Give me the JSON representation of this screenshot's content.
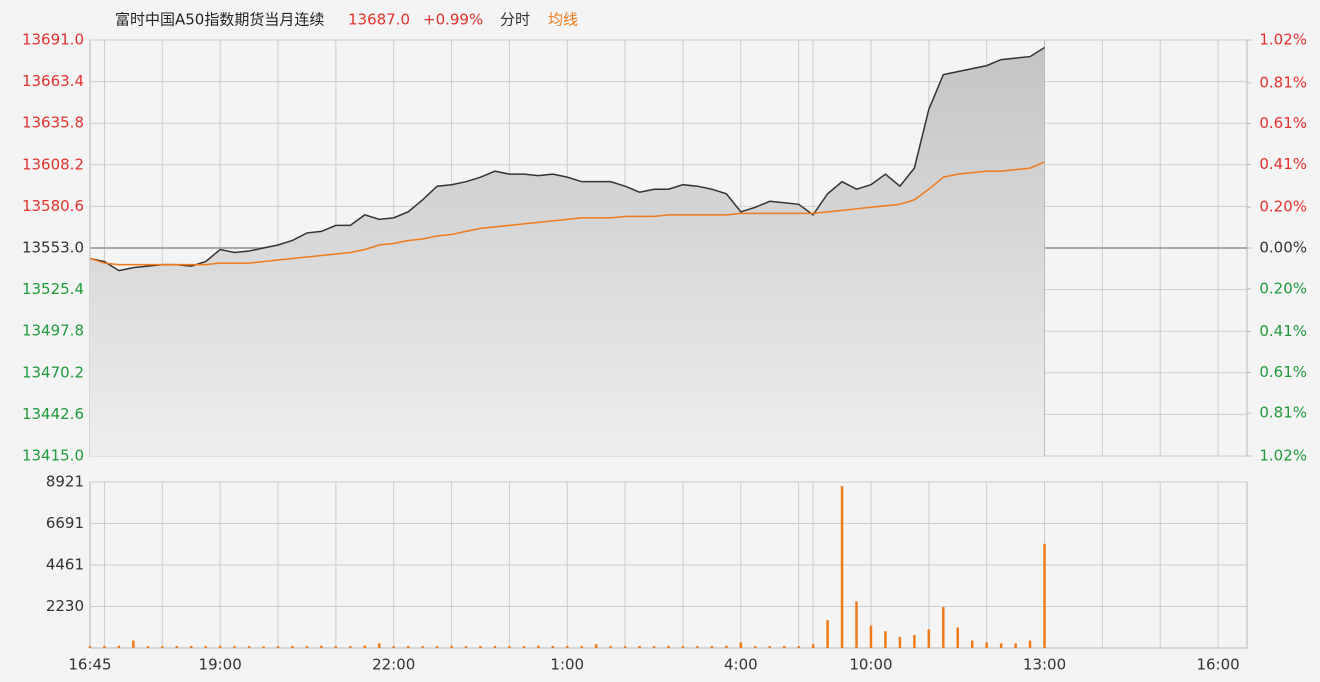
{
  "chart_data": [
    {
      "type": "line",
      "title": "富时中国A50指数期货当月连续",
      "quote": "13687.0",
      "change": "+0.99%",
      "categories": [
        "16:45",
        null,
        null,
        null,
        null,
        null,
        null,
        null,
        null,
        "19:00",
        null,
        null,
        null,
        null,
        null,
        null,
        null,
        null,
        null,
        null,
        null,
        "22:00",
        null,
        null,
        null,
        null,
        null,
        null,
        null,
        null,
        null,
        null,
        null,
        "1:00",
        null,
        null,
        null,
        null,
        null,
        null,
        null,
        null,
        null,
        null,
        null,
        "4:00",
        null,
        null,
        null,
        null,
        null,
        null,
        null,
        null,
        "10:00",
        null,
        null,
        null,
        null,
        null,
        null,
        null,
        null,
        null,
        null,
        null,
        "13:00",
        null,
        null,
        null,
        null,
        null,
        null,
        null,
        null,
        null,
        null,
        null,
        "16:00",
        null,
        null
      ],
      "series": [
        {
          "name": "分时",
          "color": "#333333",
          "values": [
            13546,
            13544,
            13538,
            13540,
            13541,
            13542,
            13542,
            13541,
            13544,
            13552,
            13550,
            13551,
            13553,
            13555,
            13558,
            13563,
            13564,
            13568,
            13568,
            13575,
            13572,
            13573,
            13577,
            13585,
            13594,
            13595,
            13597,
            13600,
            13604,
            13602,
            13602,
            13601,
            13602,
            13600,
            13597,
            13597,
            13597,
            13594,
            13590,
            13592,
            13592,
            13595,
            13594,
            13592,
            13589,
            13577,
            13580,
            13584,
            13583,
            13582,
            13575,
            13589,
            13597,
            13592,
            13595,
            13602,
            13594,
            13606,
            13645,
            13668,
            13670,
            13672,
            13674,
            13678,
            13679,
            13680,
            13686,
            null,
            null,
            null,
            null,
            null,
            null,
            null,
            null,
            null,
            null,
            null,
            null,
            null,
            null
          ]
        },
        {
          "name": "均线",
          "color": "#f07a1a",
          "values": [
            13546,
            13543,
            13542,
            13542,
            13542,
            13542,
            13542,
            13542,
            13542,
            13543,
            13543,
            13543,
            13544,
            13545,
            13546,
            13547,
            13548,
            13549,
            13550,
            13552,
            13555,
            13556,
            13558,
            13559,
            13561,
            13562,
            13564,
            13566,
            13567,
            13568,
            13569,
            13570,
            13571,
            13572,
            13573,
            13573,
            13573,
            13574,
            13574,
            13574,
            13575,
            13575,
            13575,
            13575,
            13575,
            13576,
            13576,
            13576,
            13576,
            13576,
            13576,
            13577,
            13578,
            13579,
            13580,
            13581,
            13582,
            13585,
            13592,
            13600,
            13602,
            13603,
            13604,
            13604,
            13605,
            13606,
            13610,
            null,
            null,
            null,
            null,
            null,
            null,
            null,
            null,
            null,
            null,
            null,
            null,
            null,
            null
          ]
        }
      ],
      "ylim": [
        13415,
        13691
      ],
      "yticks": [
        {
          "value": 13691,
          "label": "13691.0"
        },
        {
          "value": 13663.4,
          "label": "13663.4"
        },
        {
          "value": 13635.8,
          "label": "13635.8"
        },
        {
          "value": 13608.2,
          "label": "13608.2"
        },
        {
          "value": 13580.6,
          "label": "13580.6"
        },
        {
          "value": 13553,
          "label": "13553.0"
        },
        {
          "value": 13525.4,
          "label": "13525.4"
        },
        {
          "value": 13497.8,
          "label": "13497.8"
        },
        {
          "value": 13470.2,
          "label": "13470.2"
        },
        {
          "value": 13442.6,
          "label": "13442.6"
        },
        {
          "value": 13415,
          "label": "13415.0"
        }
      ],
      "y2lim": [
        -1.02,
        1.02
      ],
      "y2ticks": [
        {
          "value": 1.02,
          "label": "1.02%"
        },
        {
          "value": 0.81,
          "label": "0.81%"
        },
        {
          "value": 0.61,
          "label": "0.61%"
        },
        {
          "value": 0.41,
          "label": "0.41%"
        },
        {
          "value": 0.2,
          "label": "0.20%"
        },
        {
          "value": 0,
          "label": "0.00%"
        },
        {
          "value": -0.2,
          "label": "0.20%"
        },
        {
          "value": -0.41,
          "label": "0.41%"
        },
        {
          "value": -0.61,
          "label": "0.61%"
        },
        {
          "value": -0.81,
          "label": "0.81%"
        },
        {
          "value": -1.02,
          "label": "1.02%"
        }
      ],
      "colors": {
        "up": "#e2322f",
        "down": "#1f9a3c"
      },
      "grid": true
    },
    {
      "type": "bar",
      "values": [
        100,
        100,
        120,
        400,
        100,
        90,
        100,
        110,
        100,
        120,
        100,
        100,
        90,
        100,
        110,
        100,
        120,
        100,
        100,
        130,
        250,
        100,
        110,
        100,
        100,
        120,
        100,
        100,
        110,
        100,
        100,
        120,
        100,
        110,
        100,
        200,
        100,
        100,
        110,
        100,
        120,
        100,
        100,
        110,
        120,
        300,
        100,
        100,
        110,
        100,
        200,
        1500,
        8700,
        2500,
        1200,
        900,
        600,
        700,
        1000,
        2200,
        1100,
        400,
        300,
        250,
        250,
        400,
        5600,
        null,
        null,
        null,
        null,
        null,
        null,
        null,
        null,
        null,
        null,
        null,
        null,
        null,
        null
      ],
      "color": "#f07a1a",
      "ylim": [
        0,
        8921
      ],
      "yticks": [
        2230,
        4461,
        6691,
        8921
      ],
      "grid": true
    }
  ]
}
